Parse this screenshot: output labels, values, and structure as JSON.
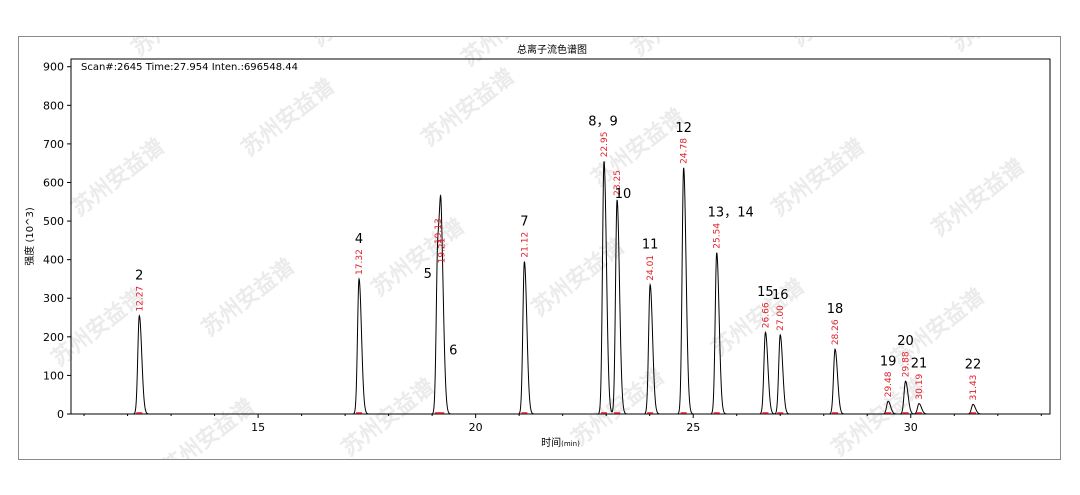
{
  "chart_data": {
    "type": "line",
    "title": "总离子流色谱图",
    "scan_info": "Scan#:2645  Time:27.954  Inten.:696548.44",
    "xlabel": "时间",
    "xlabel_unit": "(min)",
    "ylabel": "强度 (10^3)",
    "xlim": [
      10.7,
      33.2
    ],
    "ylim": [
      0,
      920
    ],
    "xticks": [
      15,
      20,
      25,
      30
    ],
    "yticks": [
      0,
      100,
      200,
      300,
      400,
      500,
      600,
      700,
      800,
      900
    ],
    "grid": false,
    "line_color": "#000000",
    "rt_color": "#e0202a",
    "peaks": [
      {
        "label": "2",
        "rt": 12.27,
        "rt_text": "12.27",
        "height": 255
      },
      {
        "label": "4",
        "rt": 17.32,
        "rt_text": "17.32",
        "height": 350
      },
      {
        "label": "5",
        "rt": 19.13,
        "rt_text": "19.13",
        "height": 430
      },
      {
        "label": "6",
        "rt": 19.21,
        "rt_text": "19.21",
        "height": 380
      },
      {
        "label": "7",
        "rt": 21.12,
        "rt_text": "21.12",
        "height": 395
      },
      {
        "label": "8，9",
        "rt": 22.95,
        "rt_text": "22.95",
        "height": 655
      },
      {
        "label": "10",
        "rt": 23.25,
        "rt_text": "23.25",
        "height": 555
      },
      {
        "label": "11",
        "rt": 24.01,
        "rt_text": "24.01",
        "height": 335
      },
      {
        "label": "12",
        "rt": 24.78,
        "rt_text": "24.78",
        "height": 638
      },
      {
        "label": "13，14",
        "rt": 25.54,
        "rt_text": "25.54",
        "height": 418
      },
      {
        "label": "15",
        "rt": 26.66,
        "rt_text": "26.66",
        "height": 212
      },
      {
        "label": "16",
        "rt": 27.0,
        "rt_text": "27.00",
        "height": 205
      },
      {
        "label": "18",
        "rt": 28.26,
        "rt_text": "28.26",
        "height": 168
      },
      {
        "label": "19",
        "rt": 29.48,
        "rt_text": "29.48",
        "height": 33
      },
      {
        "label": "20",
        "rt": 29.88,
        "rt_text": "29.88",
        "height": 85
      },
      {
        "label": "21",
        "rt": 30.19,
        "rt_text": "30.19",
        "height": 27
      },
      {
        "label": "22",
        "rt": 31.43,
        "rt_text": "31.43",
        "height": 25
      }
    ]
  },
  "watermark": "苏州安益谱"
}
